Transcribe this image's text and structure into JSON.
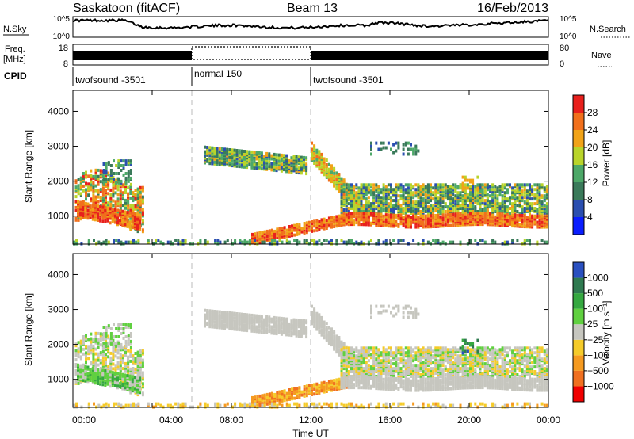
{
  "header": {
    "site": "Saskatoon (fitACF)",
    "beam": "Beam 13",
    "date": "16/Feb/2013"
  },
  "strips": {
    "nsky_label": "N.Sky",
    "nsky_ticks": [
      "10^5",
      "10^0"
    ],
    "nsearch_label": "N.Search",
    "nsearch_ticks": [
      "10^5",
      "10^0"
    ],
    "freq_label_1": "Freq.",
    "freq_label_2": "[MHz]",
    "freq_ticks": [
      "18",
      "8"
    ],
    "nave_label": "Nave",
    "nave_ticks": [
      "80",
      "0"
    ],
    "cpid_label": "CPID",
    "cpid_segments": [
      {
        "label": "twofsound -3501",
        "start_hr": 0,
        "end_hr": 6
      },
      {
        "label": "normal 150",
        "start_hr": 6,
        "end_hr": 12
      },
      {
        "label": "twofsound -3501",
        "start_hr": 12,
        "end_hr": 24
      }
    ]
  },
  "colors": {
    "power_scale": [
      "#0a1eff",
      "#2b4fb0",
      "#3a7a5a",
      "#4da868",
      "#b9d42a",
      "#f1a318",
      "#f1701c",
      "#e8201c"
    ],
    "velocity_scale": [
      "#2a50c0",
      "#2f7a50",
      "#35a840",
      "#60d040",
      "#c6c6bf",
      "#f5cb2a",
      "#f59a20",
      "#f07020",
      "#f00000"
    ]
  },
  "chart_data": [
    {
      "type": "heatmap",
      "name": "power-panel",
      "ylabel": "Slant Range [km]",
      "ylim": [
        200,
        4600
      ],
      "xlim": [
        0,
        24
      ],
      "yticks": [
        "1000",
        "2000",
        "3000",
        "4000"
      ],
      "colorbar_label": "Power [dB]",
      "colorbar_ticks": [
        "4",
        "8",
        "12",
        "16",
        "20",
        "24",
        "28"
      ],
      "grid": false,
      "legend": "right-colorbar"
    },
    {
      "type": "heatmap",
      "name": "velocity-panel",
      "ylabel": "Slant Range [km]",
      "ylim": [
        200,
        4600
      ],
      "xlim": [
        0,
        24
      ],
      "yticks": [
        "1000",
        "2000",
        "3000",
        "4000"
      ],
      "xlabel": "Time UT",
      "xticks": [
        "00:00",
        "04:00",
        "08:00",
        "12:00",
        "16:00",
        "20:00",
        "00:00"
      ],
      "colorbar_label": "Velocity [m s⁻¹]",
      "colorbar_ticks": [
        "1000",
        "500",
        "100",
        "25",
        "−25",
        "−100",
        "−500",
        "−1000"
      ],
      "grid": false,
      "legend": "right-colorbar"
    }
  ]
}
